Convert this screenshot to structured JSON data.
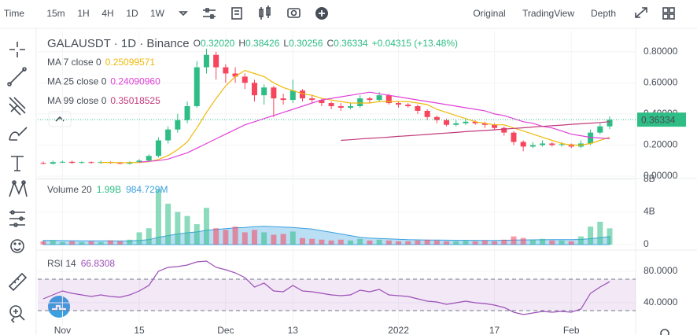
{
  "toolbar": {
    "items": [
      "Time",
      "15m",
      "1H",
      "4H",
      "1D",
      "1W"
    ],
    "views": [
      "Original",
      "TradingView",
      "Depth"
    ]
  },
  "chart_data": [
    {
      "type": "candlestick",
      "title": "GALAUSDT · 1D · Binance",
      "ohlc_legend": [
        {
          "key": "O",
          "label": "0.32020"
        },
        {
          "key": "H",
          "label": "0.38426"
        },
        {
          "key": "L",
          "label": "0.30256"
        },
        {
          "key": "C",
          "label": "0.36334"
        }
      ],
      "change": "+0.04315 (+13.48%)",
      "categories": [
        null,
        null,
        "Nov",
        null,
        null,
        null,
        null,
        null,
        null,
        null,
        "15",
        null,
        null,
        null,
        null,
        null,
        null,
        null,
        null,
        "Dec",
        null,
        null,
        null,
        null,
        null,
        null,
        "13",
        null,
        null,
        null,
        null,
        null,
        null,
        null,
        null,
        null,
        null,
        "2022",
        null,
        null,
        null,
        null,
        null,
        null,
        null,
        null,
        null,
        "17",
        null,
        null,
        null,
        null,
        null,
        null,
        null,
        "Feb",
        null,
        null,
        null,
        null
      ],
      "open": [
        0.085,
        0.08,
        0.09,
        0.092,
        0.085,
        0.09,
        0.085,
        0.09,
        0.085,
        0.08,
        0.09,
        0.1,
        0.13,
        0.23,
        0.3,
        0.36,
        0.45,
        0.7,
        0.78,
        0.7,
        0.66,
        0.64,
        0.6,
        0.52,
        0.57,
        0.5,
        0.49,
        0.55,
        0.5,
        0.49,
        0.47,
        0.45,
        0.44,
        0.45,
        0.5,
        0.49,
        0.52,
        0.47,
        0.46,
        0.45,
        0.42,
        0.38,
        0.36,
        0.33,
        0.34,
        0.35,
        0.34,
        0.33,
        0.31,
        0.28,
        0.22,
        0.19,
        0.2,
        0.21,
        0.2,
        0.205,
        0.19,
        0.21,
        0.28,
        0.3202
      ],
      "high": [
        0.095,
        0.1,
        0.1,
        0.1,
        0.095,
        0.095,
        0.1,
        0.095,
        0.09,
        0.095,
        0.11,
        0.14,
        0.25,
        0.32,
        0.4,
        0.48,
        0.74,
        0.82,
        0.8,
        0.72,
        0.7,
        0.66,
        0.62,
        0.59,
        0.58,
        0.53,
        0.62,
        0.56,
        0.52,
        0.5,
        0.48,
        0.47,
        0.47,
        0.52,
        0.51,
        0.54,
        0.53,
        0.48,
        0.47,
        0.46,
        0.43,
        0.39,
        0.37,
        0.36,
        0.37,
        0.36,
        0.35,
        0.34,
        0.32,
        0.29,
        0.23,
        0.22,
        0.23,
        0.22,
        0.22,
        0.21,
        0.23,
        0.3,
        0.34,
        0.38426
      ],
      "low": [
        0.075,
        0.075,
        0.085,
        0.08,
        0.08,
        0.08,
        0.08,
        0.08,
        0.075,
        0.075,
        0.085,
        0.095,
        0.12,
        0.21,
        0.28,
        0.34,
        0.44,
        0.66,
        0.62,
        0.6,
        0.6,
        0.56,
        0.48,
        0.46,
        0.38,
        0.46,
        0.47,
        0.48,
        0.47,
        0.45,
        0.43,
        0.42,
        0.43,
        0.44,
        0.47,
        0.48,
        0.46,
        0.44,
        0.44,
        0.4,
        0.36,
        0.34,
        0.32,
        0.32,
        0.33,
        0.33,
        0.31,
        0.3,
        0.26,
        0.2,
        0.16,
        0.18,
        0.19,
        0.19,
        0.19,
        0.18,
        0.18,
        0.2,
        0.27,
        0.30256
      ],
      "close": [
        0.08,
        0.09,
        0.092,
        0.085,
        0.09,
        0.085,
        0.09,
        0.085,
        0.08,
        0.09,
        0.1,
        0.13,
        0.23,
        0.3,
        0.36,
        0.45,
        0.7,
        0.78,
        0.7,
        0.66,
        0.64,
        0.6,
        0.52,
        0.57,
        0.5,
        0.49,
        0.55,
        0.5,
        0.49,
        0.47,
        0.45,
        0.44,
        0.45,
        0.5,
        0.49,
        0.52,
        0.47,
        0.46,
        0.45,
        0.42,
        0.38,
        0.36,
        0.33,
        0.34,
        0.35,
        0.34,
        0.33,
        0.31,
        0.28,
        0.22,
        0.19,
        0.2,
        0.21,
        0.2,
        0.205,
        0.19,
        0.21,
        0.28,
        0.32,
        0.36334
      ],
      "up_color": "#2ebd85",
      "down_color": "#f6465d",
      "indicators": [
        {
          "name": "MA 7 close 0",
          "last_label": "0.25099571",
          "color": "#f0b90b",
          "values": [
            null,
            null,
            null,
            null,
            null,
            null,
            0.088,
            0.088,
            0.087,
            0.087,
            0.088,
            0.093,
            0.107,
            0.132,
            0.17,
            0.22,
            0.31,
            0.41,
            0.5,
            0.58,
            0.64,
            0.68,
            0.66,
            0.64,
            0.6,
            0.57,
            0.55,
            0.53,
            0.52,
            0.5,
            0.49,
            0.48,
            0.47,
            0.47,
            0.47,
            0.48,
            0.48,
            0.48,
            0.48,
            0.47,
            0.46,
            0.43,
            0.41,
            0.39,
            0.37,
            0.35,
            0.34,
            0.33,
            0.33,
            0.31,
            0.29,
            0.27,
            0.25,
            0.23,
            0.21,
            0.2,
            0.2,
            0.21,
            0.23,
            0.25099571
          ]
        },
        {
          "name": "MA 25 close 0",
          "last_label": "0.24090960",
          "color": "#e040d8",
          "values": [
            null,
            null,
            null,
            null,
            null,
            null,
            null,
            null,
            null,
            null,
            0.09,
            0.095,
            0.1,
            0.11,
            0.13,
            0.15,
            0.18,
            0.21,
            0.24,
            0.27,
            0.3,
            0.33,
            0.35,
            0.37,
            0.39,
            0.41,
            0.43,
            0.45,
            0.47,
            0.49,
            0.5,
            0.51,
            0.52,
            0.53,
            0.54,
            0.53,
            0.52,
            0.51,
            0.5,
            0.49,
            0.48,
            0.47,
            0.46,
            0.45,
            0.44,
            0.43,
            0.42,
            0.4,
            0.39,
            0.37,
            0.35,
            0.34,
            0.32,
            0.31,
            0.29,
            0.27,
            0.26,
            0.25,
            0.245,
            0.2409096
          ]
        },
        {
          "name": "MA 99 close 0",
          "last_label": "0.35018525",
          "color": "#c2397a",
          "values": [
            null,
            null,
            null,
            null,
            null,
            null,
            null,
            null,
            null,
            null,
            null,
            null,
            null,
            null,
            null,
            null,
            null,
            null,
            null,
            null,
            null,
            null,
            null,
            null,
            null,
            null,
            null,
            null,
            null,
            null,
            null,
            0.23,
            0.234,
            0.239,
            0.243,
            0.247,
            0.251,
            0.256,
            0.26,
            0.264,
            0.268,
            0.273,
            0.277,
            0.281,
            0.286,
            0.29,
            0.294,
            0.298,
            0.303,
            0.307,
            0.311,
            0.316,
            0.32,
            0.324,
            0.328,
            0.333,
            0.337,
            0.341,
            0.345,
            0.35018525
          ]
        }
      ],
      "ylim": [
        -0.005,
        0.905
      ],
      "yticks": [
        {
          "value": 0,
          "label": "0.00000"
        },
        {
          "value": 0.2,
          "label": "0.20000"
        },
        {
          "value": 0.4,
          "label": "0.40000"
        },
        {
          "value": 0.6,
          "label": "0.60000"
        },
        {
          "value": 0.8,
          "label": "0.80000"
        }
      ]
    },
    {
      "type": "bar",
      "title": "Volume 20",
      "last_label": "1.99B",
      "values": [
        0.4,
        0.5,
        0.3,
        0.4,
        0.3,
        0.4,
        0.3,
        0.5,
        0.4,
        0.6,
        1.5,
        2.0,
        6.8,
        5.0,
        4.0,
        3.5,
        2.5,
        4.5,
        2.0,
        1.8,
        2.2,
        1.5,
        1.8,
        1.5,
        1.2,
        1.3,
        1.6,
        0.8,
        0.7,
        0.6,
        0.5,
        0.6,
        0.5,
        0.7,
        0.5,
        0.6,
        0.5,
        0.4,
        0.4,
        0.5,
        0.6,
        0.5,
        0.4,
        0.4,
        0.5,
        0.4,
        0.5,
        0.4,
        0.6,
        1.0,
        0.8,
        0.6,
        0.7,
        0.5,
        0.5,
        0.4,
        1.0,
        2.2,
        2.8,
        1.99
      ],
      "average": {
        "last_label": "984.729M",
        "color": "#3aa0e0",
        "values": [
          0.5,
          0.5,
          0.48,
          0.47,
          0.46,
          0.45,
          0.45,
          0.45,
          0.44,
          0.45,
          0.5,
          0.6,
          0.9,
          1.1,
          1.3,
          1.45,
          1.55,
          1.75,
          1.85,
          1.95,
          2.05,
          2.1,
          2.2,
          2.25,
          2.2,
          2.15,
          2.1,
          2.0,
          1.9,
          1.7,
          1.5,
          1.3,
          1.1,
          0.9,
          0.8,
          0.75,
          0.7,
          0.65,
          0.6,
          0.58,
          0.56,
          0.55,
          0.54,
          0.53,
          0.52,
          0.52,
          0.51,
          0.51,
          0.52,
          0.55,
          0.57,
          0.58,
          0.59,
          0.6,
          0.6,
          0.6,
          0.63,
          0.72,
          0.85,
          0.984729
        ]
      },
      "ylim": [
        0,
        8
      ],
      "yticks": [
        0,
        {
          "value": 4,
          "label": "4B"
        },
        {
          "value": 8,
          "label": "8B"
        }
      ]
    },
    {
      "type": "line",
      "title": "RSI 14",
      "color": "#9c4fb8",
      "band": [
        30,
        70
      ],
      "values": [
        45,
        50,
        55,
        52,
        50,
        48,
        50,
        48,
        47,
        50,
        55,
        62,
        80,
        85,
        86,
        88,
        92,
        93,
        85,
        82,
        78,
        72,
        60,
        65,
        55,
        54,
        62,
        55,
        54,
        52,
        50,
        49,
        50,
        56,
        54,
        57,
        50,
        49,
        48,
        45,
        42,
        41,
        38,
        40,
        42,
        40,
        39,
        37,
        34,
        28,
        25,
        27,
        29,
        28,
        29,
        28,
        32,
        52,
        60,
        66.8308
      ],
      "ylim": [
        15,
        100
      ],
      "yticks": [
        {
          "value": 40,
          "label": "40.0000"
        },
        {
          "value": 80,
          "label": "80.0000"
        }
      ]
    }
  ]
}
